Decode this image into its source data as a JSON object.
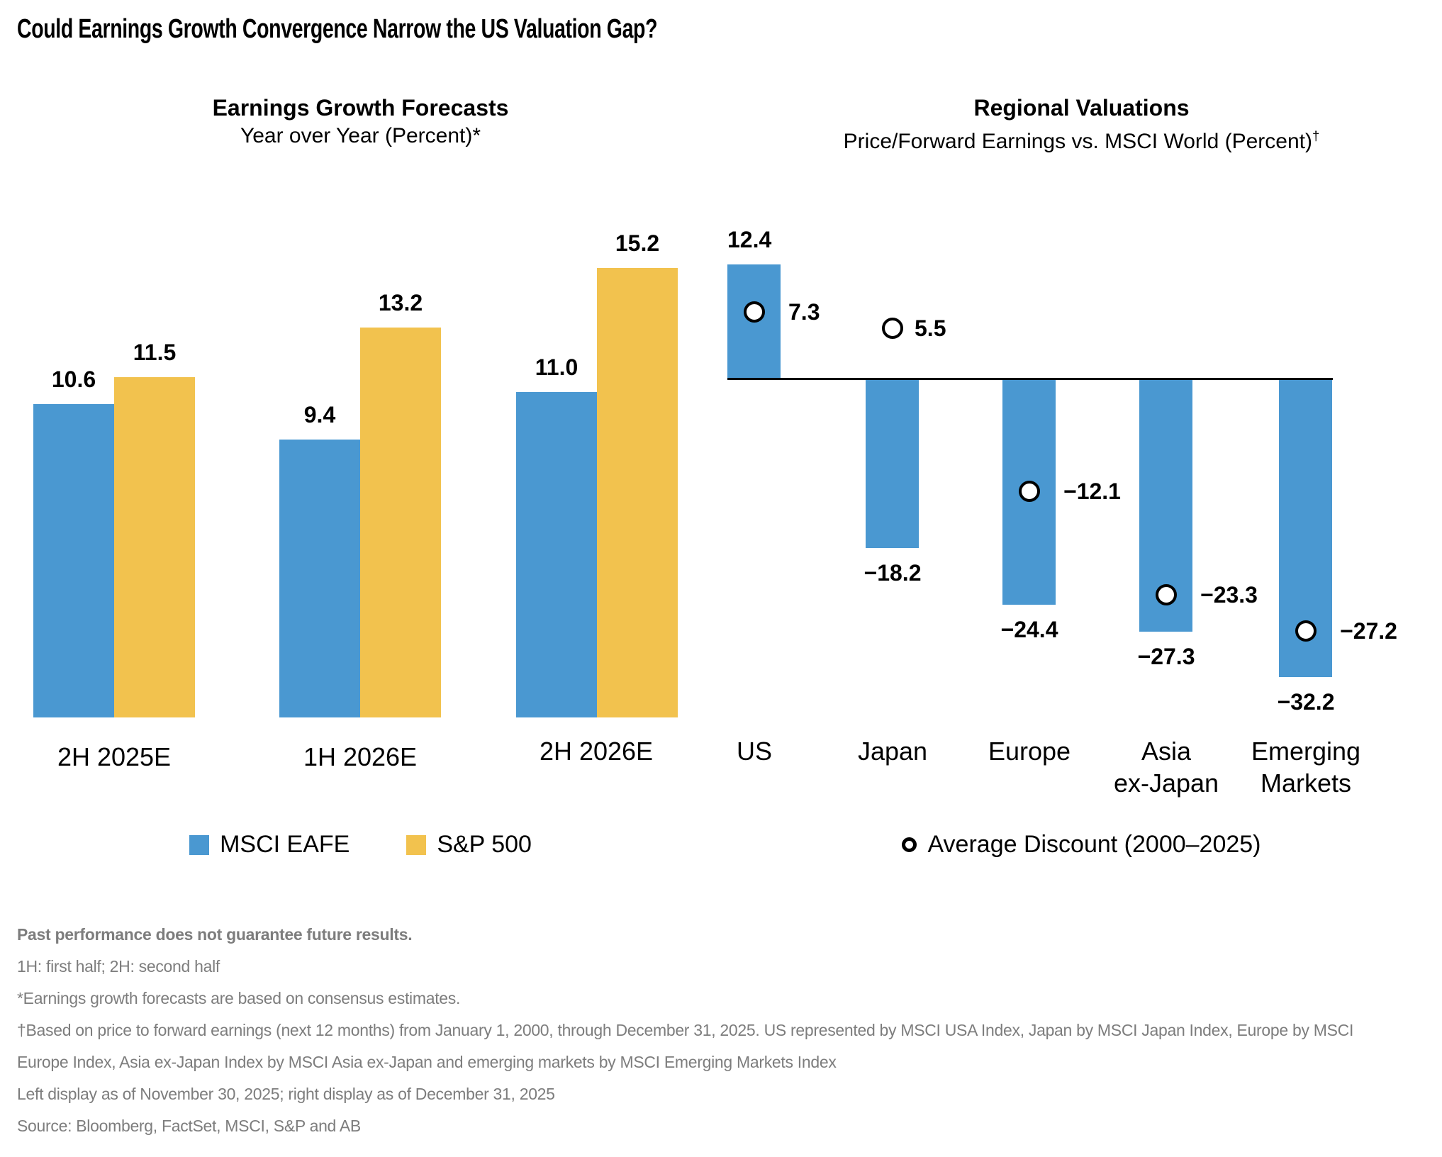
{
  "page": {
    "title": "Could Earnings Growth Convergence Narrow the US Valuation Gap?"
  },
  "chart_data": [
    {
      "type": "bar",
      "title": "Earnings Growth Forecasts",
      "subtitle": "Year over Year (Percent)*",
      "categories": [
        "2H 2025E",
        "1H 2026E",
        "2H 2026E"
      ],
      "series": [
        {
          "name": "MSCI EAFE",
          "color": "#4A98D1",
          "values": [
            10.6,
            9.4,
            11.0
          ],
          "labels": [
            "10.6",
            "9.4",
            "11.0"
          ]
        },
        {
          "name": "S&P 500",
          "color": "#F2C24E",
          "values": [
            11.5,
            13.2,
            15.2
          ],
          "labels": [
            "11.5",
            "13.2",
            "15.2"
          ]
        }
      ],
      "xlabel": "",
      "ylabel": "",
      "grid": false,
      "legend_position": "bottom"
    },
    {
      "type": "bar",
      "title": "Regional Valuations",
      "subtitle": "Price/Forward Earnings vs. MSCI World (Percent)",
      "subtitle_superscript": "†",
      "categories": [
        "US",
        "Japan",
        "Europe",
        "Asia\nex-Japan",
        "Emerging\nMarkets"
      ],
      "bars": {
        "color": "#4A98D1",
        "values": [
          12.4,
          -18.2,
          -24.4,
          -27.3,
          -32.2
        ],
        "labels": [
          "12.4",
          "−18.2",
          "−24.4",
          "−27.3",
          "−32.2"
        ]
      },
      "markers": {
        "name": "Average Discount (2000–2025)",
        "style": "open-circle",
        "values": [
          7.3,
          5.5,
          -12.1,
          -23.3,
          -27.2
        ],
        "labels": [
          "7.3",
          "5.5",
          "−12.1",
          "−23.3",
          "−27.2"
        ]
      },
      "xlabel": "",
      "ylabel": "",
      "grid": false,
      "legend_position": "bottom"
    }
  ],
  "footnotes": [
    "Past performance does not guarantee future results.",
    "1H: first half; 2H: second half",
    "*Earnings growth forecasts are based on consensus estimates.",
    "†Based on price to forward earnings (next 12 months) from January 1, 2000, through December 31, 2025. US represented by MSCI USA Index, Japan by MSCI Japan Index, Europe by MSCI",
    "Europe Index, Asia ex-Japan Index by MSCI Asia ex-Japan and emerging markets by MSCI Emerging Markets Index",
    "Left display as of November 30, 2025; right display as of December 31, 2025",
    "Source: Bloomberg, FactSet, MSCI, S&P and AB"
  ],
  "colors": {
    "bar_blue": "#4A98D1",
    "bar_yellow": "#F2C24E",
    "axis_line": "#000000",
    "footnote_gray": "#7D7D7D"
  }
}
